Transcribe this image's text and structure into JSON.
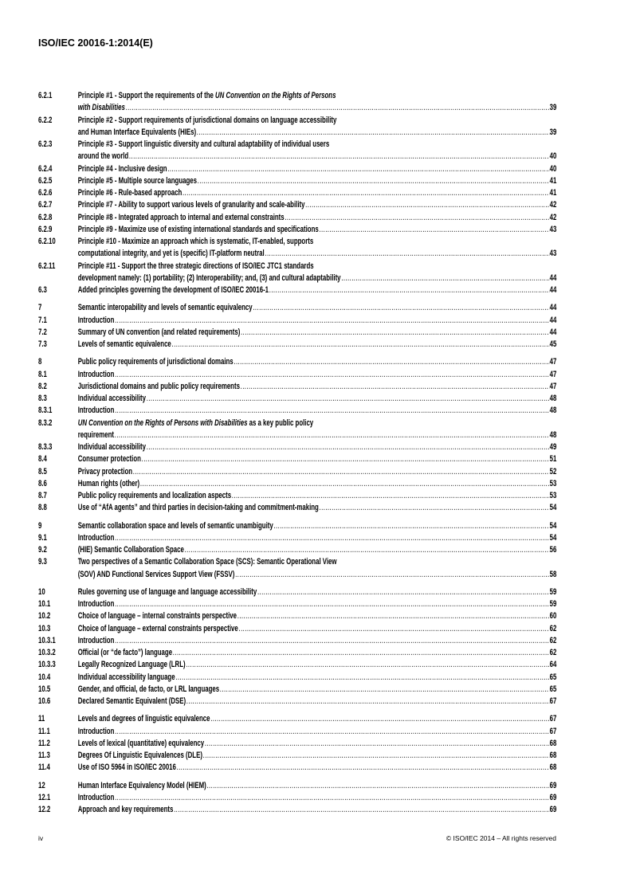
{
  "header": {
    "title": "ISO/IEC 20016-1:2014(E)"
  },
  "toc": [
    {
      "num": "6.2.1",
      "lines": [
        [
          {
            "text": "Principle #1 - Support the requirements of the "
          },
          {
            "text": "UN Convention on the Rights of Persons",
            "italic": true
          }
        ],
        [
          {
            "text": "with Disabilities",
            "italic": true
          }
        ]
      ],
      "page": "39"
    },
    {
      "num": "6.2.2",
      "lines": [
        [
          {
            "text": "Principle #2 - Support requirements of jurisdictional domains on language accessibility"
          }
        ],
        [
          {
            "text": "and Human Interface Equivalents (HIEs) "
          }
        ]
      ],
      "page": "39"
    },
    {
      "num": "6.2.3",
      "lines": [
        [
          {
            "text": "Principle #3 - Support linguistic diversity and cultural adaptability of individual users"
          }
        ],
        [
          {
            "text": "around the world"
          }
        ]
      ],
      "page": "40"
    },
    {
      "num": "6.2.4",
      "lines": [
        [
          {
            "text": "Principle #4 - Inclusive design "
          }
        ]
      ],
      "page": "40"
    },
    {
      "num": "6.2.5",
      "lines": [
        [
          {
            "text": "Principle #5 - Multiple source languages "
          }
        ]
      ],
      "page": "41"
    },
    {
      "num": "6.2.6",
      "lines": [
        [
          {
            "text": "Principle #6 - Rule-based approach"
          }
        ]
      ],
      "page": "41"
    },
    {
      "num": "6.2.7",
      "lines": [
        [
          {
            "text": "Principle #7 - Ability to support various levels of granularity and scale-ability "
          }
        ]
      ],
      "page": "42"
    },
    {
      "num": "6.2.8",
      "lines": [
        [
          {
            "text": "Principle #8 - Integrated approach to internal and external constraints "
          }
        ]
      ],
      "page": "42"
    },
    {
      "num": "6.2.9",
      "lines": [
        [
          {
            "text": "Principle #9 - Maximize use of existing international standards and specifications "
          }
        ]
      ],
      "page": "43"
    },
    {
      "num": "6.2.10",
      "lines": [
        [
          {
            "text": "Principle #10 - Maximize an approach which is systematic, IT-enabled, supports"
          }
        ],
        [
          {
            "text": "computational integrity, and yet is (specific) IT-platform neutral "
          }
        ]
      ],
      "page": "43"
    },
    {
      "num": "6.2.11",
      "lines": [
        [
          {
            "text": "Principle #11 - Support the three strategic directions of ISO/IEC JTC1 standards"
          }
        ],
        [
          {
            "text": "development namely: (1) portability; (2) Interoperability; and, (3) and cultural adaptability"
          }
        ]
      ],
      "page": "44"
    },
    {
      "num": "6.3",
      "lines": [
        [
          {
            "text": "Added principles governing the development of ISO/IEC 20016-1 "
          }
        ]
      ],
      "page": "44"
    },
    {
      "num": "7",
      "group": true,
      "lines": [
        [
          {
            "text": "Semantic interopability and levels of semantic equivalency"
          }
        ]
      ],
      "page": "44"
    },
    {
      "num": "7.1",
      "lines": [
        [
          {
            "text": "Introduction"
          }
        ]
      ],
      "page": "44"
    },
    {
      "num": "7.2",
      "lines": [
        [
          {
            "text": "Summary of UN convention (and related requirements)"
          }
        ]
      ],
      "page": "44"
    },
    {
      "num": "7.3",
      "lines": [
        [
          {
            "text": "Levels of semantic equivalence"
          }
        ]
      ],
      "page": "45"
    },
    {
      "num": "8",
      "group": true,
      "lines": [
        [
          {
            "text": "Public policy requirements of jurisdictional domains"
          }
        ]
      ],
      "page": "47"
    },
    {
      "num": "8.1",
      "lines": [
        [
          {
            "text": "Introduction"
          }
        ]
      ],
      "page": "47"
    },
    {
      "num": "8.2",
      "lines": [
        [
          {
            "text": "Jurisdictional domains and public policy requirements "
          }
        ]
      ],
      "page": "47"
    },
    {
      "num": "8.3",
      "lines": [
        [
          {
            "text": "Individual accessibility"
          }
        ]
      ],
      "page": "48"
    },
    {
      "num": "8.3.1",
      "lines": [
        [
          {
            "text": "Introduction"
          }
        ]
      ],
      "page": "48"
    },
    {
      "num": "8.3.2",
      "lines": [
        [
          {
            "text": "UN Convention on the Rights of Persons with Disabilities",
            "italic": true
          },
          {
            "text": " as a key public policy"
          }
        ],
        [
          {
            "text": "requirement "
          }
        ]
      ],
      "page": "48"
    },
    {
      "num": "8.3.3",
      "lines": [
        [
          {
            "text": "Individual accessibility"
          }
        ]
      ],
      "page": "49"
    },
    {
      "num": "8.4",
      "lines": [
        [
          {
            "text": "Consumer protection "
          }
        ]
      ],
      "page": "51"
    },
    {
      "num": "8.5",
      "lines": [
        [
          {
            "text": "Privacy protection"
          }
        ]
      ],
      "page": "52"
    },
    {
      "num": "8.6",
      "lines": [
        [
          {
            "text": "Human rights (other) "
          }
        ]
      ],
      "page": "53"
    },
    {
      "num": "8.7",
      "lines": [
        [
          {
            "text": "Public policy requirements and localization aspects "
          }
        ]
      ],
      "page": "53"
    },
    {
      "num": "8.8",
      "lines": [
        [
          {
            "text": "Use of “AfA agents” and third parties in decision-taking and commitment-making "
          }
        ]
      ],
      "page": "54"
    },
    {
      "num": "9",
      "group": true,
      "lines": [
        [
          {
            "text": "Semantic collaboration space and levels of semantic unambiguity"
          }
        ]
      ],
      "page": "54"
    },
    {
      "num": "9.1",
      "lines": [
        [
          {
            "text": "Introduction"
          }
        ]
      ],
      "page": "54"
    },
    {
      "num": "9.2",
      "lines": [
        [
          {
            "text": "(HIE) Semantic Collaboration Space"
          }
        ]
      ],
      "page": "56"
    },
    {
      "num": "9.3",
      "lines": [
        [
          {
            "text": "Two perspectives of a Semantic Collaboration Space (SCS): Semantic Operational View"
          }
        ],
        [
          {
            "text": "(SOV) AND Functional Services Support View (FSSV)"
          }
        ]
      ],
      "page": "58"
    },
    {
      "num": "10",
      "group": true,
      "lines": [
        [
          {
            "text": "Rules governing use of language and language accessibility "
          }
        ]
      ],
      "page": "59"
    },
    {
      "num": "10.1",
      "lines": [
        [
          {
            "text": "Introduction"
          }
        ]
      ],
      "page": "59"
    },
    {
      "num": "10.2",
      "lines": [
        [
          {
            "text": "Choice of language – internal constraints perspective"
          }
        ]
      ],
      "page": "60"
    },
    {
      "num": "10.3",
      "lines": [
        [
          {
            "text": "Choice of language – external constraints perspective"
          }
        ]
      ],
      "page": "62"
    },
    {
      "num": "10.3.1",
      "lines": [
        [
          {
            "text": "Introduction"
          }
        ]
      ],
      "page": "62"
    },
    {
      "num": "10.3.2",
      "lines": [
        [
          {
            "text": "Official (or “de facto”) language "
          }
        ]
      ],
      "page": "62"
    },
    {
      "num": "10.3.3",
      "lines": [
        [
          {
            "text": "Legally Recognized Language (LRL)"
          }
        ]
      ],
      "page": "64"
    },
    {
      "num": "10.4",
      "lines": [
        [
          {
            "text": "Individual accessibility language"
          }
        ]
      ],
      "page": "65"
    },
    {
      "num": "10.5",
      "lines": [
        [
          {
            "text": "Gender, and official, de facto, or LRL languages"
          }
        ]
      ],
      "page": "65"
    },
    {
      "num": "10.6",
      "lines": [
        [
          {
            "text": "Declared Semantic Equivalent (DSE) "
          }
        ]
      ],
      "page": "67"
    },
    {
      "num": "11",
      "group": true,
      "lines": [
        [
          {
            "text": "Levels and degrees of linguistic equivalence "
          }
        ]
      ],
      "page": "67"
    },
    {
      "num": "11.1",
      "lines": [
        [
          {
            "text": "Introduction"
          }
        ]
      ],
      "page": "67"
    },
    {
      "num": "11.2",
      "lines": [
        [
          {
            "text": "Levels of lexical (quantitative) equivalency"
          }
        ]
      ],
      "page": "68"
    },
    {
      "num": "11.3",
      "lines": [
        [
          {
            "text": "Degrees Of Linguistic Equivalences (DLE)"
          }
        ]
      ],
      "page": "68"
    },
    {
      "num": "11.4",
      "lines": [
        [
          {
            "text": "Use of ISO 5964 in ISO/IEC 20016"
          }
        ]
      ],
      "page": "68"
    },
    {
      "num": "12",
      "group": true,
      "lines": [
        [
          {
            "text": "Human Interface Equivalency Model (HIEM)"
          }
        ]
      ],
      "page": "69"
    },
    {
      "num": "12.1",
      "lines": [
        [
          {
            "text": "Introduction"
          }
        ]
      ],
      "page": "69"
    },
    {
      "num": "12.2",
      "lines": [
        [
          {
            "text": "Approach and key requirements"
          }
        ]
      ],
      "page": "69"
    }
  ],
  "footer": {
    "page_number": "iv",
    "copyright": "© ISO/IEC 2014 – All rights reserved"
  }
}
